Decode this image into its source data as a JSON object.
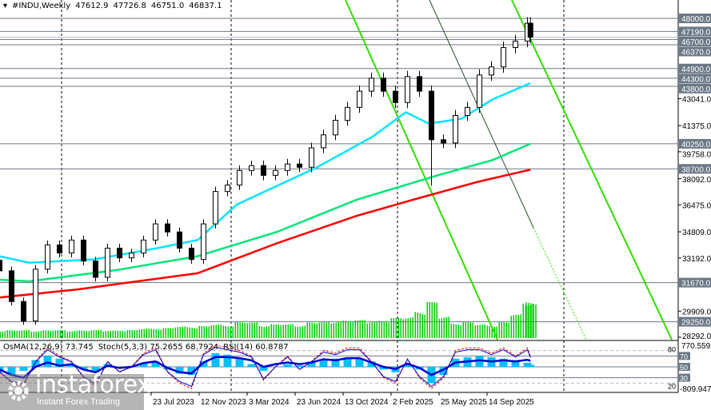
{
  "header": {
    "symbol": "#INDU,Weekly",
    "open": "47612.9",
    "high": "47726.8",
    "low": "46751.0",
    "close": "46837.1"
  },
  "indicators": {
    "osma": "OsMA(12,26,9) 73.745",
    "stoch": "Stoch(5,3,3) 75.2655 68.7924",
    "rsi": "RSI(14) 60.8787"
  },
  "watermark": {
    "name": "instaforex",
    "tagline": "Instant Forex Trading"
  },
  "colors": {
    "bull": "#000000",
    "bear": "#000000",
    "ma_fast": "#00e5ff",
    "ma_mid": "#00e676",
    "ma_slow": "#ff0000",
    "channel": "#33dd00",
    "level": "#6b7886",
    "osma": "#00bfff",
    "stoch": "#ff0000",
    "rsi": "#0000cc",
    "volume": "#00cc00"
  },
  "chart_data": {
    "type": "candlestick",
    "ylim": [
      28292,
      48600
    ],
    "price_ticks": [
      "43041.0",
      "41375.0",
      "39758.0",
      "38092.0",
      "36475.0",
      "34809.0",
      "33192.0",
      "29909.0",
      "28292.0"
    ],
    "levels": [
      "48000.0",
      "47190.0",
      "46700.0",
      "46370.0",
      "44900.0",
      "44300.0",
      "43800.0",
      "40250.0",
      "38700.0",
      "31670.0",
      "29250.0"
    ],
    "current_price": 46837.1,
    "x_ticks": [
      {
        "date": "2023-07-23",
        "label": "23 Jul 2023"
      },
      {
        "date": "2023-11-12",
        "label": "12 Nov 2023"
      },
      {
        "date": "2024-03-03",
        "label": "3 Mar 2024"
      },
      {
        "date": "2024-06-23",
        "label": "23 Jun 2024"
      },
      {
        "date": "2024-10-13",
        "label": "13 Oct 2024"
      },
      {
        "date": "2025-02-02",
        "label": "2 Feb 2025"
      },
      {
        "date": "2025-05-25",
        "label": "25 May 2025"
      },
      {
        "date": "2025-09-14",
        "label": "14 Sep 2025"
      }
    ],
    "candles": [
      [
        "2022-08-07",
        32400
      ],
      [
        "2022-09-04",
        30500
      ],
      [
        "2022-10-02",
        29300
      ],
      [
        "2022-10-30",
        32500
      ],
      [
        "2022-11-27",
        34000
      ],
      [
        "2022-12-25",
        33500
      ],
      [
        "2023-01-22",
        34300
      ],
      [
        "2023-02-19",
        33000
      ],
      [
        "2023-03-19",
        32000
      ],
      [
        "2023-04-16",
        33800
      ],
      [
        "2023-05-14",
        33200
      ],
      [
        "2023-06-11",
        33500
      ],
      [
        "2023-07-09",
        34300
      ],
      [
        "2023-08-06",
        35300
      ],
      [
        "2023-09-03",
        34800
      ],
      [
        "2023-10-01",
        33800
      ],
      [
        "2023-10-29",
        33100
      ],
      [
        "2023-11-26",
        35300
      ],
      [
        "2023-12-24",
        37300
      ],
      [
        "2024-01-21",
        37700
      ],
      [
        "2024-02-18",
        38600
      ],
      [
        "2024-03-17",
        38900
      ],
      [
        "2024-04-14",
        38300
      ],
      [
        "2024-05-12",
        38600
      ],
      [
        "2024-06-09",
        39000
      ],
      [
        "2024-07-07",
        38800
      ],
      [
        "2024-08-04",
        40000
      ],
      [
        "2024-09-01",
        40800
      ],
      [
        "2024-09-29",
        41700
      ],
      [
        "2024-10-27",
        42500
      ],
      [
        "2024-11-24",
        43500
      ],
      [
        "2024-12-22",
        44300
      ],
      [
        "2025-01-19",
        43500
      ],
      [
        "2025-02-16",
        42800
      ],
      [
        "2025-03-16",
        44400
      ],
      [
        "2025-04-13",
        43500
      ],
      [
        "2025-05-11",
        40500
      ],
      [
        "2025-06-08",
        40300
      ],
      [
        "2025-07-06",
        42000
      ],
      [
        "2025-08-03",
        42500
      ],
      [
        "2025-08-31",
        44500
      ],
      [
        "2025-09-28",
        45000
      ],
      [
        "2025-10-26",
        46200
      ],
      [
        "2025-11-23",
        46600
      ],
      [
        "2025-12-21",
        47700
      ],
      [
        "2025-12-28",
        46837.1
      ]
    ],
    "ma_fast": [
      [
        "2022-08-07",
        33300
      ],
      [
        "2022-10-15",
        32900
      ],
      [
        "2023-03-14",
        33100
      ],
      [
        "2023-08-10",
        33800
      ],
      [
        "2023-11-12",
        34300
      ],
      [
        "2024-02-12",
        36500
      ],
      [
        "2024-08-17",
        38800
      ],
      [
        "2024-12-25",
        40700
      ],
      [
        "2025-03-12",
        42200
      ],
      [
        "2025-05-05",
        41500
      ],
      [
        "2025-07-20",
        41800
      ],
      [
        "2025-10-01",
        43000
      ],
      [
        "2025-12-28",
        44000
      ]
    ],
    "ma_mid": [
      [
        "2022-08-07",
        31850
      ],
      [
        "2022-10-15",
        31750
      ],
      [
        "2023-05-08",
        32450
      ],
      [
        "2023-11-12",
        33300
      ],
      [
        "2024-05-15",
        34800
      ],
      [
        "2024-11-18",
        36800
      ],
      [
        "2025-05-25",
        38300
      ],
      [
        "2025-10-01",
        39250
      ],
      [
        "2025-12-28",
        40250
      ]
    ],
    "ma_slow": [
      [
        "2022-08-07",
        30750
      ],
      [
        "2023-02-05",
        31250
      ],
      [
        "2023-11-12",
        32250
      ],
      [
        "2024-05-15",
        34100
      ],
      [
        "2024-11-18",
        35800
      ],
      [
        "2025-03-30",
        36800
      ],
      [
        "2025-08-27",
        37900
      ],
      [
        "2025-12-28",
        38650
      ]
    ],
    "volume_relative": [
      0.2,
      0.2,
      0.2,
      0.2,
      0.2,
      0.2,
      0.2,
      0.2,
      0.2,
      0.2,
      0.2,
      0.2,
      0.25,
      0.25,
      0.25,
      0.3,
      0.3,
      0.3,
      0.35,
      0.35,
      0.4,
      0.4,
      0.35,
      0.35,
      0.35,
      0.35,
      0.4,
      0.4,
      0.45,
      0.45,
      0.45,
      0.45,
      0.45,
      0.5,
      0.55,
      0.7,
      0.9,
      0.55,
      0.4,
      0.4,
      0.35,
      0.35,
      0.4,
      0.6,
      1.0,
      0.9
    ],
    "indicator_levels": [
      "80",
      "70",
      "50",
      "30",
      "20"
    ],
    "indicator_range": [
      "770.559",
      "-809.947"
    ],
    "osma": [
      -200,
      -300,
      -150,
      250,
      400,
      300,
      100,
      -100,
      -200,
      100,
      -50,
      0,
      150,
      200,
      -100,
      -250,
      -300,
      200,
      500,
      450,
      300,
      100,
      -150,
      0,
      100,
      50,
      200,
      250,
      300,
      350,
      300,
      200,
      -100,
      -200,
      100,
      -100,
      -600,
      -300,
      300,
      350,
      400,
      350,
      300,
      250,
      150,
      73.7
    ],
    "stoch": [
      40,
      20,
      15,
      60,
      85,
      70,
      60,
      30,
      15,
      60,
      40,
      50,
      75,
      85,
      40,
      20,
      10,
      75,
      90,
      85,
      80,
      70,
      25,
      50,
      70,
      45,
      60,
      80,
      75,
      85,
      85,
      60,
      30,
      20,
      65,
      30,
      10,
      30,
      80,
      85,
      85,
      75,
      85,
      70,
      85,
      68.8
    ],
    "rsi": [
      45,
      35,
      30,
      50,
      58,
      52,
      55,
      45,
      40,
      52,
      48,
      50,
      57,
      60,
      48,
      40,
      38,
      58,
      68,
      68,
      66,
      62,
      50,
      55,
      58,
      55,
      58,
      64,
      62,
      66,
      66,
      58,
      50,
      46,
      56,
      48,
      35,
      45,
      58,
      60,
      62,
      60,
      62,
      60,
      63,
      60.9
    ]
  }
}
